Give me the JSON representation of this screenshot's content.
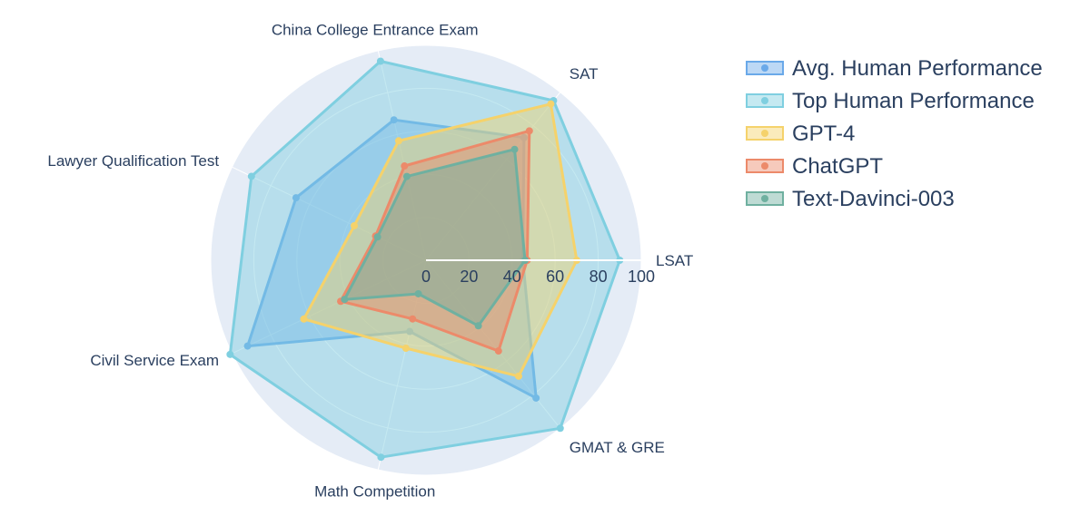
{
  "chart_data": {
    "type": "radar",
    "title": "",
    "axes": [
      "LSAT",
      "SAT",
      "China College Entrance Exam",
      "Lawyer Qualification Test",
      "Civil Service Exam",
      "Math Competition",
      "GMAT & GRE"
    ],
    "radial_range": [
      0,
      100
    ],
    "radial_ticks": [
      0,
      20,
      40,
      60,
      80,
      100
    ],
    "series": [
      {
        "name": "Avg. Human Performance",
        "color": "#6aa9e9",
        "values": [
          45,
          73,
          67,
          67,
          92,
          34,
          82
        ]
      },
      {
        "name": "Top Human Performance",
        "color": "#7fcfe0",
        "values": [
          90,
          95,
          95,
          90,
          101,
          94,
          100
        ]
      },
      {
        "name": "GPT-4",
        "color": "#f5d26b",
        "values": [
          70,
          93,
          57,
          37,
          63,
          42,
          69
        ]
      },
      {
        "name": "ChatGPT",
        "color": "#ec8a6a",
        "values": [
          47,
          77,
          45,
          26,
          44,
          28,
          54
        ]
      },
      {
        "name": "Text-Davinci-003",
        "color": "#6fb0a0",
        "values": [
          46,
          66,
          40,
          25,
          42,
          16,
          39
        ]
      }
    ],
    "legend_position": "top-right",
    "grid": true,
    "background_color": "#e5ecf6"
  }
}
